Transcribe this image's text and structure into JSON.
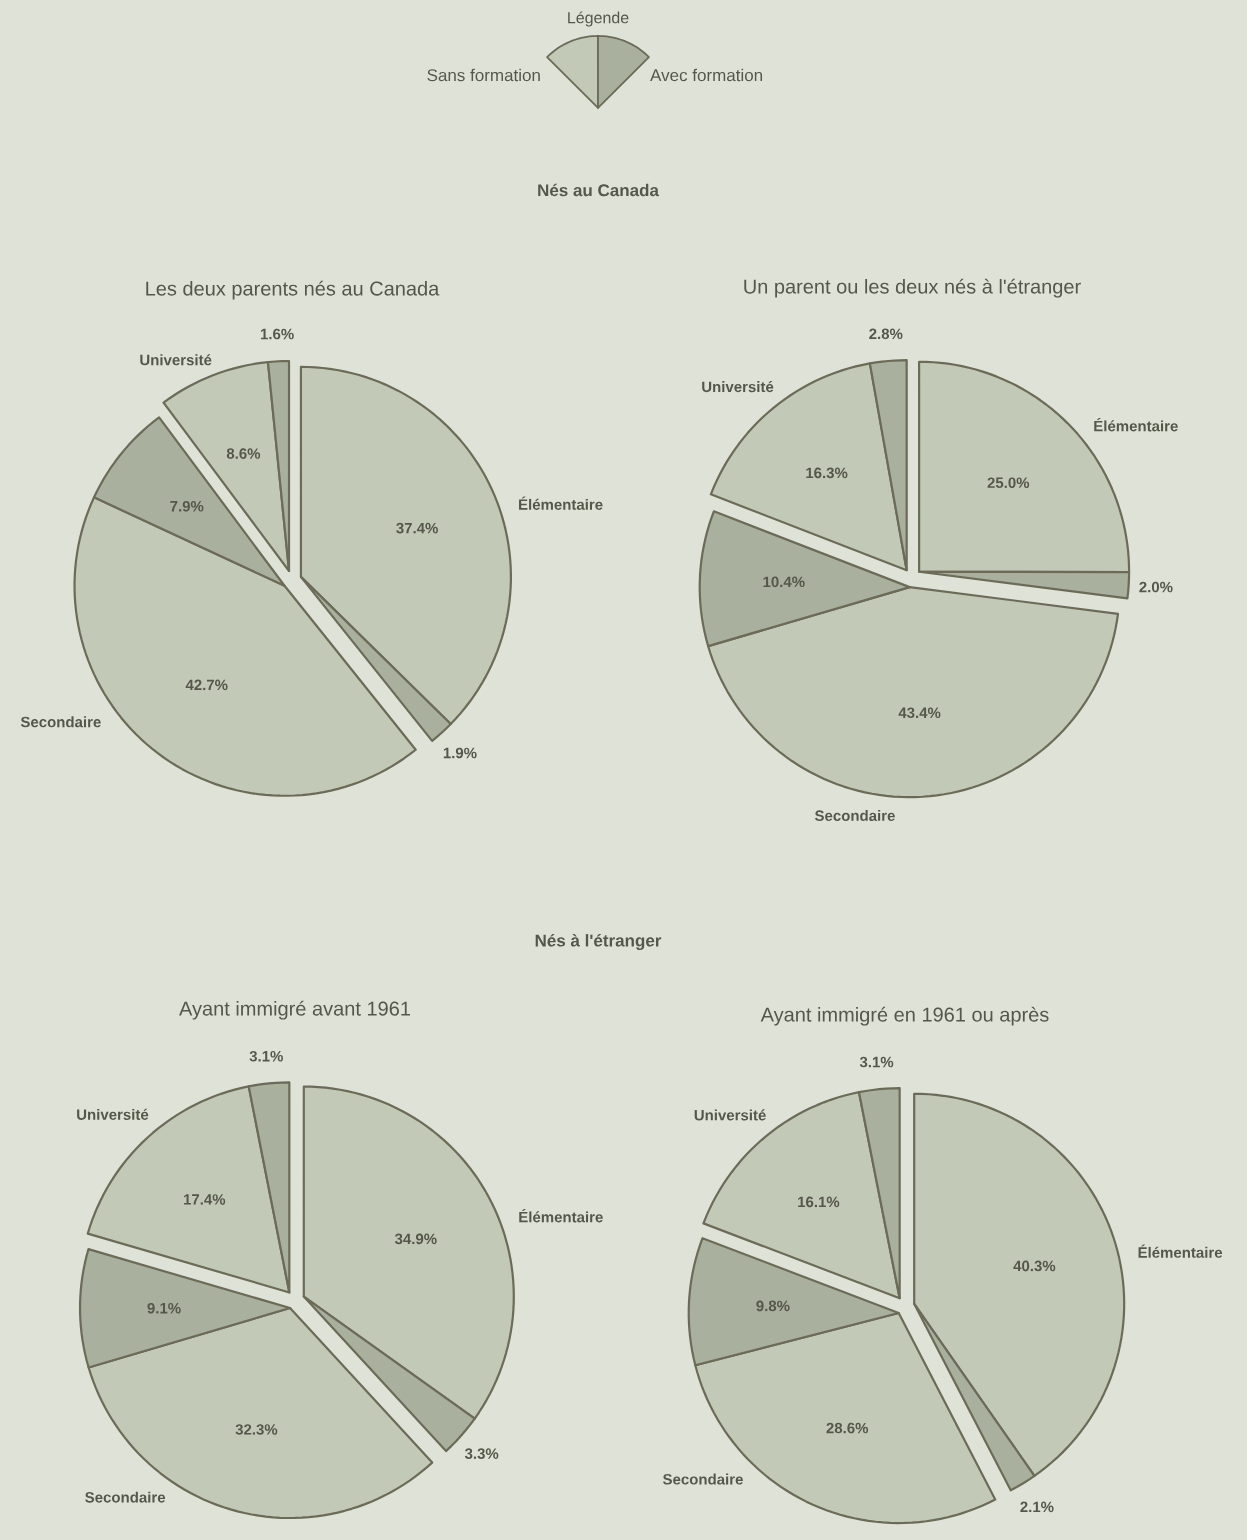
{
  "chart_data": [
    {
      "type": "other",
      "legend_title": "Légende",
      "colors": [
        "#c3c9b7",
        "#aab09e"
      ],
      "annotations": [
        "Sans formation",
        "Avec formation",
        "Nés au Canada",
        "Nés à l'étranger"
      ]
    },
    {
      "type": "pie",
      "title": "Les deux parents nés au Canada",
      "categories": [
        "Élémentaire",
        null,
        "Secondaire",
        null,
        "Université",
        null
      ],
      "values": [
        37.4,
        1.9,
        42.7,
        7.9,
        8.6,
        1.6
      ],
      "value_labels": [
        "37.4%",
        "1.9%",
        "42.7%",
        "7.9%",
        "8.6%",
        "1.6%"
      ],
      "colors": [
        "#c3c9b7",
        "#aab09e",
        "#c3c9b7",
        "#aab09e",
        "#c3c9b7",
        "#aab09e"
      ]
    },
    {
      "type": "pie",
      "title": "Un parent ou les deux nés à l'étranger",
      "categories": [
        "Élémentaire",
        null,
        "Secondaire",
        null,
        "Université",
        null
      ],
      "values": [
        25.0,
        2.0,
        43.4,
        10.4,
        16.3,
        2.8
      ],
      "value_labels": [
        "25.0%",
        "2.0%",
        "43.4%",
        "10.4%",
        "16.3%",
        "2.8%"
      ],
      "colors": [
        "#c3c9b7",
        "#aab09e",
        "#c3c9b7",
        "#aab09e",
        "#c3c9b7",
        "#aab09e"
      ]
    },
    {
      "type": "pie",
      "title": "Ayant immigré avant 1961",
      "categories": [
        "Élémentaire",
        null,
        "Secondaire",
        null,
        "Université",
        null
      ],
      "values": [
        34.9,
        3.3,
        32.3,
        9.1,
        17.4,
        3.1
      ],
      "value_labels": [
        "34.9%",
        "3.3%",
        "32.3%",
        "9.1%",
        "17.4%",
        "3.1%"
      ],
      "colors": [
        "#c3c9b7",
        "#aab09e",
        "#c3c9b7",
        "#aab09e",
        "#c3c9b7",
        "#aab09e"
      ]
    },
    {
      "type": "pie",
      "title": "Ayant immigré en 1961 ou après",
      "categories": [
        "Élémentaire",
        null,
        "Secondaire",
        null,
        "Université",
        null
      ],
      "values": [
        40.3,
        2.1,
        28.6,
        9.8,
        16.1,
        3.1
      ],
      "value_labels": [
        "40.3%",
        "2.1%",
        "28.6%",
        "9.8%",
        "16.1%",
        "3.1%"
      ],
      "colors": [
        "#c3c9b7",
        "#aab09e",
        "#c3c9b7",
        "#aab09e",
        "#c3c9b7",
        "#aab09e"
      ]
    }
  ]
}
